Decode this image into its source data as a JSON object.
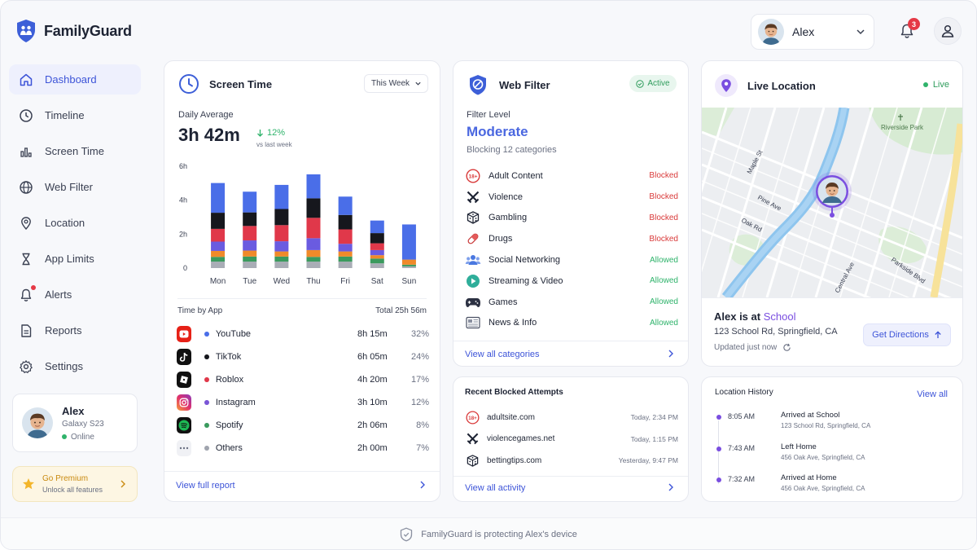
{
  "app": {
    "name": "FamilyGuard"
  },
  "header": {
    "profile_name": "Alex",
    "notifications_count": "3"
  },
  "sidebar": {
    "items": [
      {
        "label": "Dashboard",
        "icon": "home-icon",
        "active": true
      },
      {
        "label": "Timeline",
        "icon": "clock-icon"
      },
      {
        "label": "Screen Time",
        "icon": "bar-chart-icon"
      },
      {
        "label": "Web Filter",
        "icon": "globe-icon"
      },
      {
        "label": "Location",
        "icon": "pin-icon"
      },
      {
        "label": "App Limits",
        "icon": "hourglass-icon"
      },
      {
        "label": "Alerts",
        "icon": "bell-icon"
      },
      {
        "label": "Reports",
        "icon": "document-icon"
      },
      {
        "label": "Settings",
        "icon": "gear-icon"
      }
    ],
    "device": {
      "name": "Alex",
      "model": "Galaxy S23",
      "status": "Online"
    },
    "premium": {
      "title": "Go Premium",
      "subtitle": "Unlock all features"
    }
  },
  "screen_time": {
    "title": "Screen Time",
    "range": "This Week",
    "daily_label": "Daily Average",
    "daily_value": "3h 42m",
    "change": "12%",
    "change_sub": "vs last week",
    "time_by_app_label": "Time by App",
    "total": "Total 25h 56m",
    "footer_link": "View full report",
    "apps": [
      {
        "name": "YouTube",
        "time": "8h 15m",
        "pct": "32%",
        "color": "#4a6ee8"
      },
      {
        "name": "TikTok",
        "time": "6h 05m",
        "pct": "24%",
        "color": "#15161c"
      },
      {
        "name": "Roblox",
        "time": "4h 20m",
        "pct": "17%",
        "color": "#e0384a"
      },
      {
        "name": "Instagram",
        "time": "3h 10m",
        "pct": "12%",
        "color": "#7a55d6"
      },
      {
        "name": "Spotify",
        "time": "2h 06m",
        "pct": "8%",
        "color": "#3b9a5e"
      },
      {
        "name": "Others",
        "time": "2h 00m",
        "pct": "7%",
        "color": "#a0a4ae"
      }
    ]
  },
  "chart_data": {
    "type": "bar",
    "stacked": true,
    "categories": [
      "Mon",
      "Tue",
      "Wed",
      "Thu",
      "Fri",
      "Sat",
      "Sun"
    ],
    "y_ticks": [
      "0",
      "2h",
      "4h",
      "6h"
    ],
    "ylim": [
      0,
      6
    ],
    "series": [
      {
        "name": "Others",
        "color": "#a9adb6",
        "values": [
          0.38,
          0.38,
          0.38,
          0.38,
          0.38,
          0.28,
          0.1
        ]
      },
      {
        "name": "Spotify",
        "color": "#3b9a5e",
        "values": [
          0.28,
          0.3,
          0.3,
          0.28,
          0.3,
          0.28,
          0.1
        ]
      },
      {
        "name": "Orange",
        "color": "#f08a2a",
        "values": [
          0.35,
          0.35,
          0.3,
          0.4,
          0.3,
          0.2,
          0.3
        ]
      },
      {
        "name": "Instagram",
        "color": "#6a5be0",
        "values": [
          0.55,
          0.6,
          0.6,
          0.7,
          0.45,
          0.3,
          0.0
        ]
      },
      {
        "name": "Roblox",
        "color": "#e0384a",
        "values": [
          0.75,
          0.85,
          0.95,
          1.2,
          0.85,
          0.4,
          0.0
        ]
      },
      {
        "name": "TikTok",
        "color": "#16171d",
        "values": [
          0.95,
          0.8,
          0.95,
          1.15,
          0.85,
          0.6,
          0.0
        ]
      },
      {
        "name": "YouTube",
        "color": "#4a6ee8",
        "values": [
          1.75,
          1.22,
          1.42,
          1.41,
          1.08,
          0.74,
          2.07
        ]
      }
    ]
  },
  "web_filter": {
    "title": "Web Filter",
    "badge": "Active",
    "level_label": "Filter Level",
    "level": "Moderate",
    "level_sub": "Blocking 12 categories",
    "footer_link": "View all categories",
    "categories": [
      {
        "name": "Adult Content",
        "status": "Blocked",
        "icon": "adult-18-icon"
      },
      {
        "name": "Violence",
        "status": "Blocked",
        "icon": "swords-icon"
      },
      {
        "name": "Gambling",
        "status": "Blocked",
        "icon": "dice-icon"
      },
      {
        "name": "Drugs",
        "status": "Blocked",
        "icon": "pill-icon"
      },
      {
        "name": "Social Networking",
        "status": "Allowed",
        "icon": "people-icon"
      },
      {
        "name": "Streaming & Video",
        "status": "Allowed",
        "icon": "play-icon"
      },
      {
        "name": "Games",
        "status": "Allowed",
        "icon": "gamepad-icon"
      },
      {
        "name": "News & Info",
        "status": "Allowed",
        "icon": "newspaper-icon"
      }
    ]
  },
  "blocked_attempts": {
    "title": "Recent Blocked Attempts",
    "footer_link": "View all activity",
    "items": [
      {
        "site": "adultsite.com",
        "time": "Today, 2:34 PM",
        "icon": "adult-18-icon"
      },
      {
        "site": "violencegames.net",
        "time": "Today, 1:15 PM",
        "icon": "swords-icon"
      },
      {
        "site": "bettingtips.com",
        "time": "Yesterday, 9:47 PM",
        "icon": "dice-icon"
      }
    ]
  },
  "live_location": {
    "title": "Live Location",
    "badge": "Live",
    "status_prefix": "Alex is at",
    "place": "School",
    "address": "123 School Rd, Springfield, CA",
    "updated": "Updated just now",
    "directions": "Get Directions",
    "map_labels": {
      "park": "Riverside Park",
      "maple": "Maple St",
      "pine": "Pine Ave",
      "oak": "Oak Rd",
      "central": "Central Ave",
      "parkside": "Parkside Blvd"
    }
  },
  "location_history": {
    "title": "Location History",
    "view_all": "View all",
    "items": [
      {
        "time": "8:05 AM",
        "event": "Arrived at School",
        "address": "123 School Rd, Springfield, CA"
      },
      {
        "time": "7:43 AM",
        "event": "Left Home",
        "address": "456 Oak Ave, Springfield, CA"
      },
      {
        "time": "7:32 AM",
        "event": "Arrived at Home",
        "address": "456 Oak Ave, Springfield, CA"
      }
    ]
  },
  "footer": {
    "text": "FamilyGuard is protecting Alex's device"
  }
}
